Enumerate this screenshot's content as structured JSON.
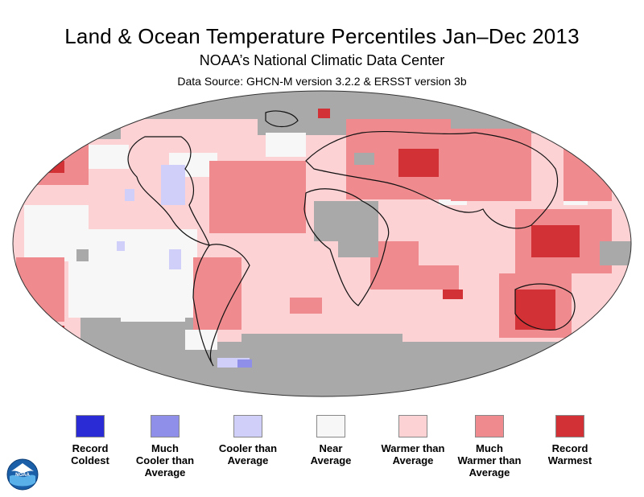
{
  "header": {
    "title": "Land & Ocean Temperature Percentiles Jan–Dec 2013",
    "subtitle": "NOAA’s National Climatic Data Center",
    "source": "Data Source: GHCN-M version 3.2.2 & ERSST version 3b"
  },
  "legend": [
    {
      "label": "Record\nColdest",
      "color": "#2b2bd6"
    },
    {
      "label": "Much\nCooler than\nAverage",
      "color": "#8f8fea"
    },
    {
      "label": "Cooler than\nAverage",
      "color": "#cfcff9"
    },
    {
      "label": "Near\nAverage",
      "color": "#f7f7f7"
    },
    {
      "label": "Warmer than\nAverage",
      "color": "#fcd2d5"
    },
    {
      "label": "Much\nWarmer than\nAverage",
      "color": "#ef8b8f"
    },
    {
      "label": "Record\nWarmest",
      "color": "#d23136"
    }
  ],
  "colors": {
    "no_data": "#a9a9a9",
    "coastline": "#111111"
  },
  "logo": {
    "text": "NOAA"
  }
}
